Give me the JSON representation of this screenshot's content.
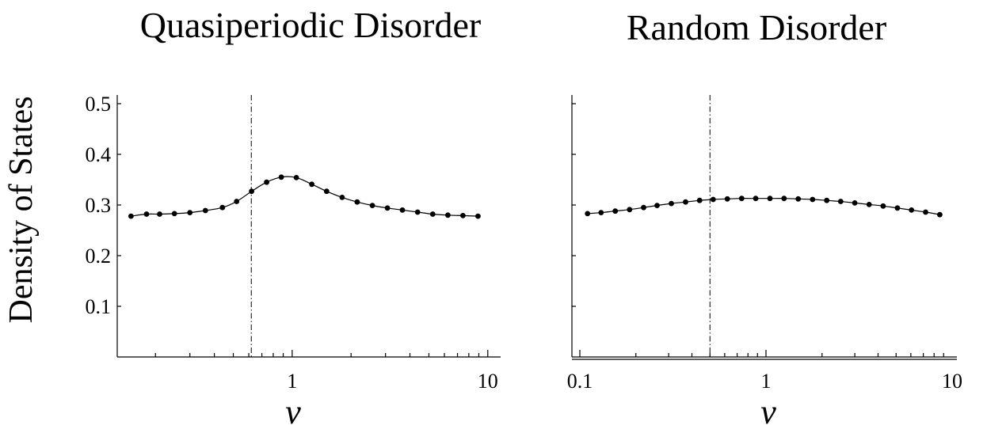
{
  "figure": {
    "ylabel": "Density of States"
  },
  "chart_data": [
    {
      "type": "line",
      "title": "Quasiperiodic Disorder",
      "xlabel": "v",
      "ylabel": "Density of States",
      "xscale": "log",
      "xlim": [
        0.14,
        11
      ],
      "ylim": [
        0,
        0.5
      ],
      "xticks": [
        {
          "value": 1,
          "label": "1"
        },
        {
          "value": 10,
          "label": "10"
        }
      ],
      "yticks": [
        {
          "value": 0.1,
          "label": "0.1"
        },
        {
          "value": 0.2,
          "label": "0.2"
        },
        {
          "value": 0.3,
          "label": "0.3"
        },
        {
          "value": 0.4,
          "label": "0.4"
        },
        {
          "value": 0.5,
          "label": "0.5"
        }
      ],
      "vline": 0.618,
      "x": [
        0.15,
        0.18,
        0.21,
        0.25,
        0.3,
        0.36,
        0.44,
        0.52,
        0.62,
        0.74,
        0.88,
        1.05,
        1.26,
        1.5,
        1.8,
        2.15,
        2.57,
        3.07,
        3.66,
        4.38,
        5.23,
        6.25,
        7.46,
        8.91
      ],
      "series": [
        {
          "values": [
            0.278,
            0.282,
            0.282,
            0.283,
            0.285,
            0.289,
            0.295,
            0.307,
            0.327,
            0.345,
            0.355,
            0.354,
            0.341,
            0.327,
            0.315,
            0.306,
            0.299,
            0.294,
            0.29,
            0.286,
            0.282,
            0.28,
            0.279,
            0.278
          ]
        }
      ],
      "show_yticklabels": true
    },
    {
      "type": "line",
      "title": "Random Disorder",
      "xlabel": "v",
      "xscale": "log",
      "xlim": [
        0.1,
        10
      ],
      "ylim": [
        0,
        0.5
      ],
      "xticks": [
        {
          "value": 0.1,
          "label": "0.1"
        },
        {
          "value": 1,
          "label": "1"
        },
        {
          "value": 10,
          "label": "10"
        }
      ],
      "yticks": [
        {
          "value": 0.1,
          "label": ""
        },
        {
          "value": 0.2,
          "label": ""
        },
        {
          "value": 0.3,
          "label": ""
        },
        {
          "value": 0.4,
          "label": ""
        },
        {
          "value": 0.5,
          "label": ""
        }
      ],
      "vline": 0.5,
      "x": [
        0.11,
        0.13,
        0.155,
        0.185,
        0.22,
        0.26,
        0.31,
        0.37,
        0.44,
        0.52,
        0.62,
        0.74,
        0.88,
        1.05,
        1.25,
        1.49,
        1.78,
        2.12,
        2.52,
        3.0,
        3.58,
        4.26,
        5.08,
        6.05,
        7.2,
        8.58
      ],
      "series": [
        {
          "values": [
            0.283,
            0.285,
            0.288,
            0.291,
            0.295,
            0.299,
            0.303,
            0.306,
            0.309,
            0.311,
            0.312,
            0.313,
            0.313,
            0.313,
            0.313,
            0.312,
            0.311,
            0.309,
            0.307,
            0.304,
            0.301,
            0.298,
            0.294,
            0.29,
            0.286,
            0.281
          ]
        }
      ],
      "show_yticklabels": false
    }
  ]
}
